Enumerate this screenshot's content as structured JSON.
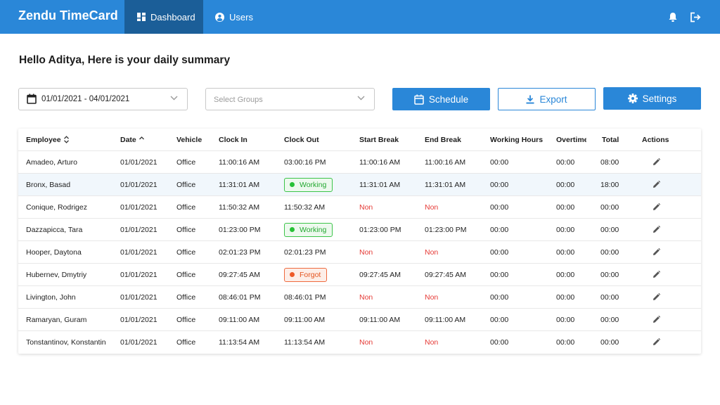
{
  "app": {
    "brand": "Zendu TimeCard",
    "nav": [
      {
        "label": "Dashboard",
        "icon": "dashboard-icon",
        "active": true
      },
      {
        "label": "Users",
        "icon": "user-circle-icon",
        "active": false
      }
    ],
    "icons": [
      "bell-icon",
      "logout-icon"
    ]
  },
  "greeting": "Hello Aditya, Here is your daily summary",
  "filters": {
    "date_range": "01/01/2021 - 04/01/2021",
    "groups_placeholder": "Select Groups"
  },
  "buttons": {
    "schedule": "Schedule",
    "export": "Export",
    "settings": "Settings"
  },
  "colors": {
    "primary": "#2a87d8",
    "nav_active": "#1b5e98",
    "working": "#27c136",
    "forgot": "#ee5a28",
    "non": "#e53935"
  },
  "table": {
    "columns": [
      "Employee",
      "Date",
      "Vehicle",
      "Clock In",
      "Clock Out",
      "Start Break",
      "End Break",
      "Working Hours",
      "Overtime",
      "Total",
      "Actions"
    ],
    "rows": [
      {
        "employee": "Amadeo, Arturo",
        "date": "01/01/2021",
        "vehicle": "Office",
        "clock_in": "11:00:16 AM",
        "clock_out": "03:00:16 PM",
        "clock_out_status": "",
        "start_break": "11:00:16 AM",
        "end_break": "11:00:16 AM",
        "working_hours": "00:00",
        "overtime": "00:00",
        "total": "08:00"
      },
      {
        "employee": "Bronx, Basad",
        "date": "01/01/2021",
        "vehicle": "Office",
        "clock_in": "11:31:01 AM",
        "clock_out": "Working",
        "clock_out_status": "working",
        "start_break": "11:31:01 AM",
        "end_break": "11:31:01 AM",
        "working_hours": "00:00",
        "overtime": "00:00",
        "total": "18:00"
      },
      {
        "employee": "Conique, Rodrigez",
        "date": "01/01/2021",
        "vehicle": "Office",
        "clock_in": "11:50:32 AM",
        "clock_out": "11:50:32 AM",
        "clock_out_status": "",
        "start_break": "Non",
        "end_break": "Non",
        "working_hours": "00:00",
        "overtime": "00:00",
        "total": "00:00"
      },
      {
        "employee": "Dazzapicca, Tara",
        "date": "01/01/2021",
        "vehicle": "Office",
        "clock_in": "01:23:00 PM",
        "clock_out": "Working",
        "clock_out_status": "working",
        "start_break": "01:23:00 PM",
        "end_break": "01:23:00 PM",
        "working_hours": "00:00",
        "overtime": "00:00",
        "total": "00:00"
      },
      {
        "employee": "Hooper, Daytona",
        "date": "01/01/2021",
        "vehicle": "Office",
        "clock_in": "02:01:23 PM",
        "clock_out": "02:01:23 PM",
        "clock_out_status": "",
        "start_break": "Non",
        "end_break": "Non",
        "working_hours": "00:00",
        "overtime": "00:00",
        "total": "00:00"
      },
      {
        "employee": "Hubernev, Dmytriy",
        "date": "01/01/2021",
        "vehicle": "Office",
        "clock_in": "09:27:45 AM",
        "clock_out": "Forgot",
        "clock_out_status": "forgot",
        "start_break": "09:27:45 AM",
        "end_break": "09:27:45 AM",
        "working_hours": "00:00",
        "overtime": "00:00",
        "total": "00:00"
      },
      {
        "employee": "Livington, John",
        "date": "01/01/2021",
        "vehicle": "Office",
        "clock_in": "08:46:01 PM",
        "clock_out": "08:46:01 PM",
        "clock_out_status": "",
        "start_break": "Non",
        "end_break": "Non",
        "working_hours": "00:00",
        "overtime": "00:00",
        "total": "00:00"
      },
      {
        "employee": "Ramaryan, Guram",
        "date": "01/01/2021",
        "vehicle": "Office",
        "clock_in": "09:11:00 AM",
        "clock_out": "09:11:00 AM",
        "clock_out_status": "",
        "start_break": "09:11:00 AM",
        "end_break": "09:11:00 AM",
        "working_hours": "00:00",
        "overtime": "00:00",
        "total": "00:00"
      },
      {
        "employee": "Tonstantinov, Konstantin",
        "date": "01/01/2021",
        "vehicle": "Office",
        "clock_in": "11:13:54 AM",
        "clock_out": "11:13:54 AM",
        "clock_out_status": "",
        "start_break": "Non",
        "end_break": "Non",
        "working_hours": "00:00",
        "overtime": "00:00",
        "total": "00:00"
      }
    ]
  }
}
